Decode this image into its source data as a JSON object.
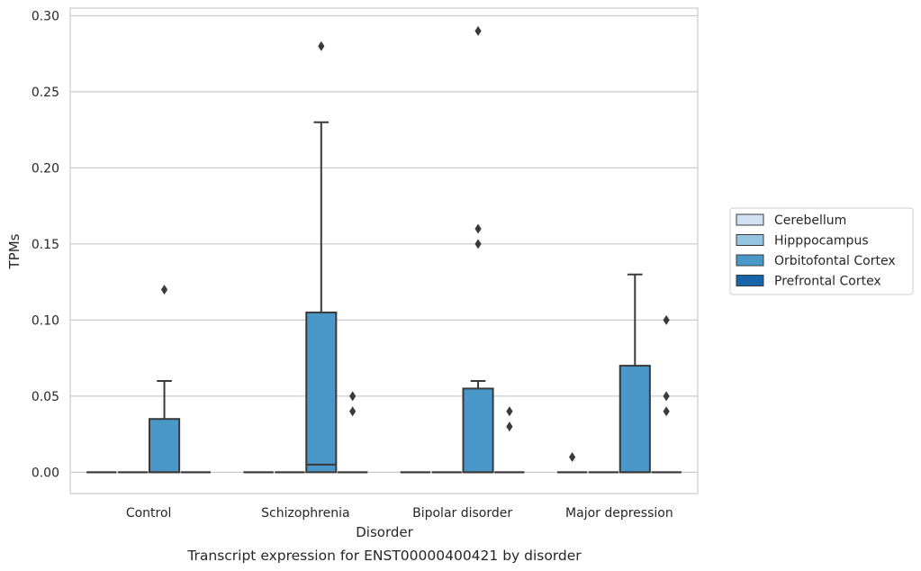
{
  "chart_data": {
    "type": "box",
    "title": "",
    "caption": "Transcript expression for ENST00000400421 by disorder",
    "xlabel": "Disorder",
    "ylabel": "TPMs",
    "ylim": [
      -0.014,
      0.305
    ],
    "yticks": [
      "0.00",
      "0.05",
      "0.10",
      "0.15",
      "0.20",
      "0.25",
      "0.30"
    ],
    "categories": [
      "Control",
      "Schizophrenia",
      "Bipolar disorder",
      "Major depression"
    ],
    "grid": "horizontal",
    "legend_position": "right",
    "series": [
      {
        "name": "Cerebellum",
        "color": "#d0e1f2",
        "boxes": [
          {
            "category": "Control",
            "q1": 0,
            "median": 0,
            "q3": 0,
            "whisker_low": 0,
            "whisker_high": 0,
            "outliers": []
          },
          {
            "category": "Schizophrenia",
            "q1": 0,
            "median": 0,
            "q3": 0,
            "whisker_low": 0,
            "whisker_high": 0,
            "outliers": []
          },
          {
            "category": "Bipolar disorder",
            "q1": 0,
            "median": 0,
            "q3": 0,
            "whisker_low": 0,
            "whisker_high": 0,
            "outliers": []
          },
          {
            "category": "Major depression",
            "q1": 0,
            "median": 0,
            "q3": 0,
            "whisker_low": 0,
            "whisker_high": 0,
            "outliers": [
              0.01
            ]
          }
        ]
      },
      {
        "name": "Hipppocampus",
        "color": "#94c4df",
        "boxes": [
          {
            "category": "Control",
            "q1": 0,
            "median": 0,
            "q3": 0,
            "whisker_low": 0,
            "whisker_high": 0,
            "outliers": []
          },
          {
            "category": "Schizophrenia",
            "q1": 0,
            "median": 0,
            "q3": 0,
            "whisker_low": 0,
            "whisker_high": 0,
            "outliers": []
          },
          {
            "category": "Bipolar disorder",
            "q1": 0,
            "median": 0,
            "q3": 0,
            "whisker_low": 0,
            "whisker_high": 0,
            "outliers": []
          },
          {
            "category": "Major depression",
            "q1": 0,
            "median": 0,
            "q3": 0,
            "whisker_low": 0,
            "whisker_high": 0,
            "outliers": []
          }
        ]
      },
      {
        "name": "Orbitofontal Cortex",
        "color": "#4a98c9",
        "boxes": [
          {
            "category": "Control",
            "q1": 0,
            "median": 0,
            "q3": 0.035,
            "whisker_low": 0,
            "whisker_high": 0.06,
            "outliers": [
              0.12
            ]
          },
          {
            "category": "Schizophrenia",
            "q1": 0,
            "median": 0.005,
            "q3": 0.105,
            "whisker_low": 0,
            "whisker_high": 0.23,
            "outliers": [
              0.28
            ]
          },
          {
            "category": "Bipolar disorder",
            "q1": 0,
            "median": 0,
            "q3": 0.055,
            "whisker_low": 0,
            "whisker_high": 0.06,
            "outliers": [
              0.29,
              0.16,
              0.15
            ]
          },
          {
            "category": "Major depression",
            "q1": 0,
            "median": 0,
            "q3": 0.07,
            "whisker_low": 0,
            "whisker_high": 0.13,
            "outliers": []
          }
        ]
      },
      {
        "name": "Prefrontal Cortex",
        "color": "#1764ab",
        "boxes": [
          {
            "category": "Control",
            "q1": 0,
            "median": 0,
            "q3": 0,
            "whisker_low": 0,
            "whisker_high": 0,
            "outliers": []
          },
          {
            "category": "Schizophrenia",
            "q1": 0,
            "median": 0,
            "q3": 0,
            "whisker_low": 0,
            "whisker_high": 0,
            "outliers": [
              0.05,
              0.04
            ]
          },
          {
            "category": "Bipolar disorder",
            "q1": 0,
            "median": 0,
            "q3": 0,
            "whisker_low": 0,
            "whisker_high": 0,
            "outliers": [
              0.04,
              0.03
            ]
          },
          {
            "category": "Major depression",
            "q1": 0,
            "median": 0,
            "q3": 0,
            "whisker_low": 0,
            "whisker_high": 0,
            "outliers": [
              0.1,
              0.05,
              0.04
            ]
          }
        ]
      }
    ]
  }
}
